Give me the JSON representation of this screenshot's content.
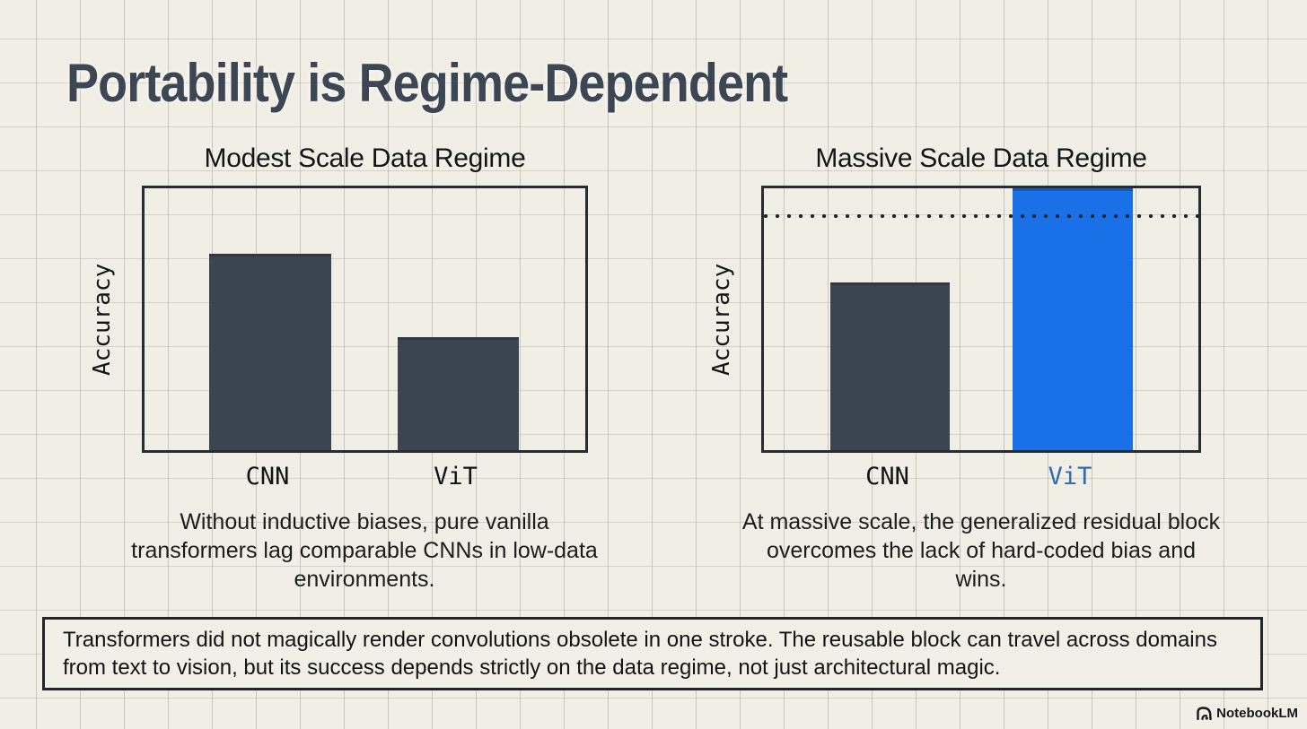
{
  "page": {
    "title": "Portability is Regime-Dependent",
    "watermark_label": "NotebookLM"
  },
  "colors": {
    "background": "#f1eee5",
    "grid_line": "#d7d4c9",
    "title_ink": "#3d4653",
    "plot_border": "#272c33",
    "bar_dark": "#3b4552",
    "bar_blue": "#1a70e6",
    "vit_label_blue": "#2f6cb5",
    "text_dark": "#17181a"
  },
  "chart_data": [
    {
      "type": "bar",
      "title": "Modest Scale Data Regime",
      "ylabel": "Accuracy",
      "xlabel": "",
      "categories": [
        "CNN",
        "ViT"
      ],
      "values": [
        0.75,
        0.43
      ],
      "ylim": [
        0,
        1
      ],
      "grid": false,
      "legend": "none",
      "bar_colors": [
        "#3b4552",
        "#3b4552"
      ],
      "label_colors": [
        "#141517",
        "#141517"
      ],
      "caption": "Without inductive biases, pure vanilla transformers lag comparable CNNs in low-data environments."
    },
    {
      "type": "bar",
      "title": "Massive Scale Data Regime",
      "ylabel": "Accuracy",
      "xlabel": "",
      "categories": [
        "CNN",
        "ViT"
      ],
      "values": [
        0.64,
        1.0
      ],
      "ylim": [
        0,
        1
      ],
      "grid": false,
      "legend": "none",
      "dotted_threshold": 0.9,
      "bar_colors": [
        "#3b4552",
        "#1a70e6"
      ],
      "label_colors": [
        "#141517",
        "#2f6cb5"
      ],
      "caption": "At massive scale, the generalized residual block overcomes the lack of hard-coded bias and wins."
    }
  ],
  "footer": {
    "text": "Transformers did not magically render convolutions obsolete in one stroke. The reusable block can travel across domains from text to vision, but its success depends strictly on the data regime, not just architectural magic."
  }
}
